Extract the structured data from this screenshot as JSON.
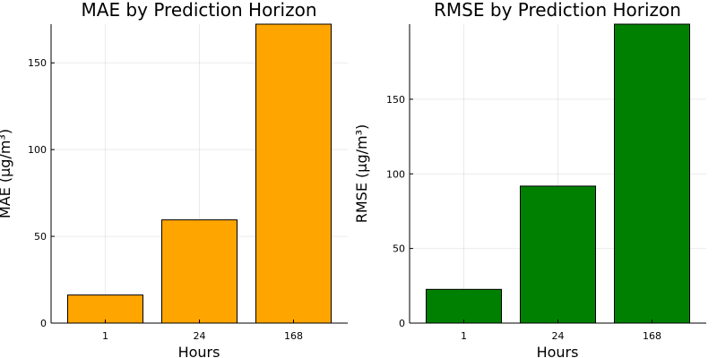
{
  "chart_data": [
    {
      "type": "bar",
      "title": "MAE by Prediction Horizon",
      "xlabel": "Hours",
      "ylabel": "MAE (μg/m³)",
      "categories": [
        "1",
        "24",
        "168"
      ],
      "values": [
        16.2,
        59.5,
        172.3
      ],
      "ylim": [
        0,
        172.3
      ],
      "yticks": [
        0,
        50,
        100,
        150
      ],
      "color": "#ffa500",
      "grid": true,
      "legend": "none"
    },
    {
      "type": "bar",
      "title": "RMSE by Prediction Horizon",
      "xlabel": "Hours",
      "ylabel": "RMSE (μg/m³)",
      "categories": [
        "1",
        "24",
        "168"
      ],
      "values": [
        22.6,
        91.8,
        200.3
      ],
      "ylim": [
        0,
        200.3
      ],
      "yticks": [
        0,
        50,
        100,
        150
      ],
      "color": "#008000",
      "grid": true,
      "legend": "none"
    }
  ]
}
